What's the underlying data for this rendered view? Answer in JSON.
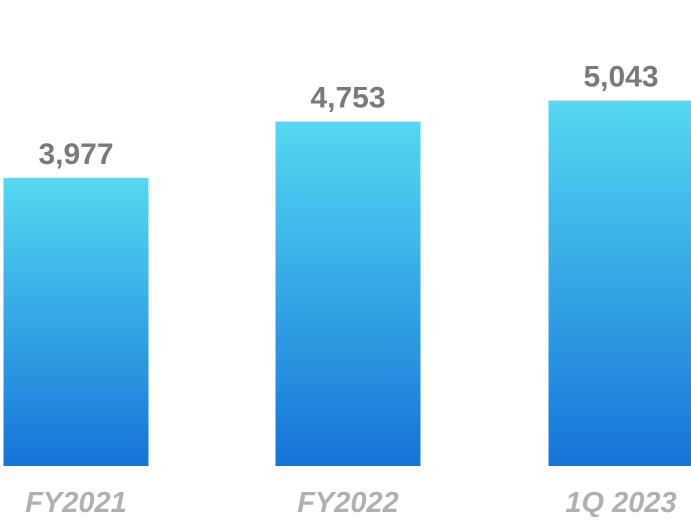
{
  "chart_data": {
    "type": "bar",
    "categories": [
      "FY2021",
      "FY2022",
      "1Q 2023"
    ],
    "values": [
      3977,
      4753,
      5043
    ],
    "value_labels": [
      "3,977",
      "4,753",
      "5,043"
    ],
    "title": "",
    "xlabel": "",
    "ylabel": "",
    "ylim": [
      0,
      6430
    ],
    "grid": false,
    "legend": "none",
    "colors": {
      "bar_top": "#55d8f2",
      "bar_bottom": "#1574d8",
      "value_label": "#7a7a7a",
      "category_label": "#b0b0b0"
    }
  }
}
